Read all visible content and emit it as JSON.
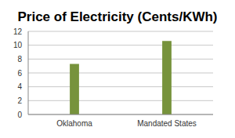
{
  "chart_data": {
    "type": "bar",
    "title": "Price of Electricity (Cents/KWh)",
    "categories": [
      "Oklahoma",
      "Mandated States"
    ],
    "values": [
      7.3,
      10.6
    ],
    "color": "#77933c",
    "ylim": [
      0,
      12
    ],
    "yticks": [
      0,
      2,
      4,
      6,
      8,
      10,
      12
    ],
    "grid": true
  }
}
